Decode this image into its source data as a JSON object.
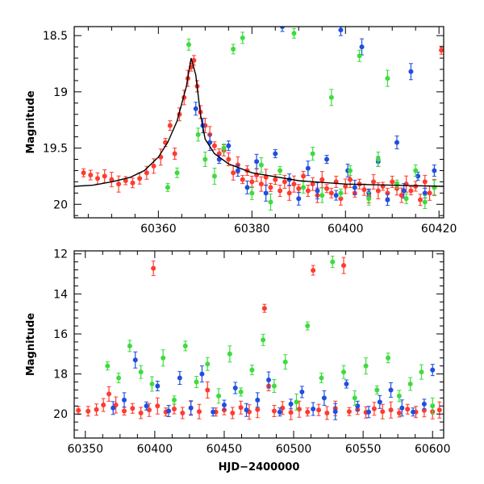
{
  "chart_data": [
    {
      "type": "scatter",
      "panel": "top",
      "xlabel": "",
      "ylabel": "Magnitude",
      "xlim": [
        60342,
        60421
      ],
      "ylim": [
        20.12,
        18.42
      ],
      "y_inverted": true,
      "xticks": [
        60360,
        60380,
        60400,
        60420
      ],
      "yticks": [
        18.5,
        19,
        19.5,
        20
      ],
      "ytick_labels": [
        "18.5",
        "19",
        "19.5",
        "20"
      ],
      "error_bars": true,
      "model_curve": {
        "color": "#000000",
        "points": [
          [
            60342,
            19.84
          ],
          [
            60346,
            19.83
          ],
          [
            60350,
            19.8
          ],
          [
            60354,
            19.76
          ],
          [
            60357,
            19.7
          ],
          [
            60360,
            19.58
          ],
          [
            60362,
            19.45
          ],
          [
            60364,
            19.26
          ],
          [
            60366,
            18.95
          ],
          [
            60367,
            18.7
          ],
          [
            60368,
            18.85
          ],
          [
            60369,
            19.2
          ],
          [
            60370,
            19.42
          ],
          [
            60372,
            19.55
          ],
          [
            60375,
            19.64
          ],
          [
            60380,
            19.72
          ],
          [
            60390,
            19.79
          ],
          [
            60400,
            19.82
          ],
          [
            60410,
            19.83
          ],
          [
            60421,
            19.84
          ]
        ]
      },
      "series": [
        {
          "color": "#ff3b2f",
          "points": [
            [
              60344,
              19.72
            ],
            [
              60345.5,
              19.74
            ],
            [
              60347,
              19.77
            ],
            [
              60348.5,
              19.75
            ],
            [
              60350,
              19.78
            ],
            [
              60351.5,
              19.82
            ],
            [
              60353,
              19.79
            ],
            [
              60354.5,
              19.81
            ],
            [
              60356,
              19.77
            ],
            [
              60357.5,
              19.72
            ],
            [
              60359,
              19.66
            ],
            [
              60360.5,
              19.58
            ],
            [
              60361.5,
              19.45
            ],
            [
              60362.5,
              19.3
            ],
            [
              60363.5,
              19.55
            ],
            [
              60364.5,
              19.2
            ],
            [
              60365.5,
              19.05
            ],
            [
              60366.3,
              18.88
            ],
            [
              60367,
              18.78
            ],
            [
              60367.6,
              18.72
            ],
            [
              60368.3,
              18.95
            ],
            [
              60369,
              19.18
            ],
            [
              60370,
              19.3
            ],
            [
              60371,
              19.38
            ],
            [
              60372,
              19.48
            ],
            [
              60373,
              19.55
            ],
            [
              60374,
              19.52
            ],
            [
              60375,
              19.6
            ],
            [
              60376,
              19.72
            ],
            [
              60377,
              19.65
            ],
            [
              60378,
              19.78
            ],
            [
              60379,
              19.7
            ],
            [
              60380,
              19.8
            ],
            [
              60381,
              19.74
            ],
            [
              60382,
              19.82
            ],
            [
              60383,
              19.76
            ],
            [
              60384,
              19.85
            ],
            [
              60385,
              19.78
            ],
            [
              60386,
              19.88
            ],
            [
              60387,
              19.8
            ],
            [
              60388,
              19.9
            ],
            [
              60389,
              19.82
            ],
            [
              60390,
              19.86
            ],
            [
              60391,
              19.75
            ],
            [
              60392,
              19.88
            ],
            [
              60393,
              19.82
            ],
            [
              60394,
              19.92
            ],
            [
              60395,
              19.78
            ],
            [
              60396,
              19.86
            ],
            [
              60397,
              19.9
            ],
            [
              60398,
              19.8
            ],
            [
              60399,
              19.95
            ],
            [
              60400,
              19.84
            ],
            [
              60401,
              19.78
            ],
            [
              60402,
              19.9
            ],
            [
              60403,
              19.82
            ],
            [
              60404,
              19.87
            ],
            [
              60405,
              19.93
            ],
            [
              60406,
              19.8
            ],
            [
              60407,
              19.88
            ],
            [
              60408,
              19.84
            ],
            [
              60409,
              19.9
            ],
            [
              60410,
              19.8
            ],
            [
              60411,
              19.86
            ],
            [
              60412,
              19.92
            ],
            [
              60413,
              19.82
            ],
            [
              60414,
              19.88
            ],
            [
              60415,
              19.84
            ],
            [
              60416,
              19.96
            ],
            [
              60417,
              19.8
            ],
            [
              60418,
              19.9
            ],
            [
              60419,
              19.85
            ],
            [
              60420.5,
              18.63
            ]
          ]
        },
        {
          "color": "#1f4fe0",
          "points": [
            [
              60368,
              19.15
            ],
            [
              60369.5,
              19.3
            ],
            [
              60371,
              19.45
            ],
            [
              60373,
              19.6
            ],
            [
              60375,
              19.48
            ],
            [
              60377,
              19.7
            ],
            [
              60379,
              19.85
            ],
            [
              60381,
              19.62
            ],
            [
              60383,
              19.9
            ],
            [
              60385,
              19.55
            ],
            [
              60386.5,
              18.42
            ],
            [
              60388,
              19.78
            ],
            [
              60390,
              19.95
            ],
            [
              60392,
              19.68
            ],
            [
              60394,
              19.88
            ],
            [
              60396,
              19.6
            ],
            [
              60398,
              19.92
            ],
            [
              60399,
              18.45
            ],
            [
              60400.5,
              19.7
            ],
            [
              60402,
              19.85
            ],
            [
              60403.5,
              18.6
            ],
            [
              60405,
              19.9
            ],
            [
              60407,
              19.62
            ],
            [
              60409,
              19.96
            ],
            [
              60411,
              19.45
            ],
            [
              60412.5,
              19.88
            ],
            [
              60414,
              18.82
            ],
            [
              60415.5,
              19.75
            ],
            [
              60417,
              19.9
            ],
            [
              60419,
              19.7
            ]
          ]
        },
        {
          "color": "#3ddc3d",
          "points": [
            [
              60362,
              19.85
            ],
            [
              60364,
              19.72
            ],
            [
              60366.5,
              18.58
            ],
            [
              60368.5,
              19.38
            ],
            [
              60370,
              19.6
            ],
            [
              60372,
              19.75
            ],
            [
              60374,
              19.5
            ],
            [
              60376,
              18.62
            ],
            [
              60378,
              18.52
            ],
            [
              60380,
              19.9
            ],
            [
              60382,
              19.65
            ],
            [
              60384,
              19.98
            ],
            [
              60386,
              19.7
            ],
            [
              60389,
              18.48
            ],
            [
              60391,
              19.85
            ],
            [
              60393,
              19.55
            ],
            [
              60395,
              19.92
            ],
            [
              60397,
              19.05
            ],
            [
              60399,
              19.9
            ],
            [
              60401,
              19.7
            ],
            [
              60403,
              18.68
            ],
            [
              60405,
              19.95
            ],
            [
              60407,
              19.6
            ],
            [
              60409,
              18.88
            ],
            [
              60411,
              19.82
            ],
            [
              60413,
              19.95
            ],
            [
              60415,
              19.7
            ],
            [
              60417,
              19.98
            ],
            [
              60419,
              19.85
            ]
          ]
        }
      ]
    },
    {
      "type": "scatter",
      "panel": "bottom",
      "xlabel": "HJD−2400000",
      "ylabel": "Magnitude",
      "xlim": [
        60342,
        60608
      ],
      "ylim": [
        21.2,
        11.85
      ],
      "y_inverted": true,
      "xticks": [
        60350,
        60400,
        60450,
        60500,
        60550,
        60600
      ],
      "yticks": [
        12,
        14,
        16,
        18,
        20
      ],
      "ytick_labels": [
        "12",
        "14",
        "16",
        "18",
        "20"
      ],
      "error_bars": true,
      "series": [
        {
          "color": "#ff3b2f",
          "points": [
            [
              60345,
              19.82
            ],
            [
              60352,
              19.86
            ],
            [
              60358,
              19.78
            ],
            [
              60363,
              19.55
            ],
            [
              60367,
              19.0
            ],
            [
              60372,
              19.55
            ],
            [
              60378,
              19.85
            ],
            [
              60384,
              19.72
            ],
            [
              60390,
              19.95
            ],
            [
              60396,
              19.8
            ],
            [
              60399,
              12.72
            ],
            [
              60402,
              19.6
            ],
            [
              60408,
              19.9
            ],
            [
              60414,
              19.75
            ],
            [
              60420,
              19.95
            ],
            [
              60426,
              19.7
            ],
            [
              60432,
              19.88
            ],
            [
              60438,
              18.8
            ],
            [
              60444,
              19.9
            ],
            [
              60450,
              19.8
            ],
            [
              60456,
              19.95
            ],
            [
              60462,
              19.68
            ],
            [
              60468,
              19.9
            ],
            [
              60474,
              19.78
            ],
            [
              60479,
              14.72
            ],
            [
              60482,
              18.6
            ],
            [
              60486,
              19.85
            ],
            [
              60492,
              19.7
            ],
            [
              60498,
              19.92
            ],
            [
              60504,
              19.76
            ],
            [
              60510,
              19.9
            ],
            [
              60514,
              12.82
            ],
            [
              60518,
              19.8
            ],
            [
              60524,
              19.95
            ],
            [
              60530,
              19.72
            ],
            [
              60536,
              12.58
            ],
            [
              60540,
              19.88
            ],
            [
              60546,
              19.78
            ],
            [
              60552,
              19.92
            ],
            [
              60558,
              19.74
            ],
            [
              60564,
              19.88
            ],
            [
              60570,
              19.8
            ],
            [
              60576,
              19.95
            ],
            [
              60582,
              19.76
            ],
            [
              60588,
              19.9
            ],
            [
              60594,
              19.82
            ],
            [
              60600,
              19.88
            ],
            [
              60605,
              19.8
            ]
          ]
        },
        {
          "color": "#1f4fe0",
          "points": [
            [
              60370,
              19.7
            ],
            [
              60378,
              19.3
            ],
            [
              60386,
              17.3
            ],
            [
              60394,
              19.6
            ],
            [
              60402,
              18.6
            ],
            [
              60410,
              19.85
            ],
            [
              60418,
              18.2
            ],
            [
              60426,
              19.7
            ],
            [
              60434,
              18.0
            ],
            [
              60442,
              19.9
            ],
            [
              60450,
              19.55
            ],
            [
              60458,
              18.7
            ],
            [
              60466,
              19.8
            ],
            [
              60474,
              19.3
            ],
            [
              60482,
              18.3
            ],
            [
              60490,
              19.9
            ],
            [
              60498,
              19.5
            ],
            [
              60506,
              18.9
            ],
            [
              60514,
              19.75
            ],
            [
              60522,
              19.2
            ],
            [
              60530,
              19.88
            ],
            [
              60538,
              18.5
            ],
            [
              60546,
              19.6
            ],
            [
              60554,
              19.9
            ],
            [
              60562,
              19.4
            ],
            [
              60570,
              18.8
            ],
            [
              60578,
              19.7
            ],
            [
              60586,
              19.9
            ],
            [
              60594,
              19.5
            ],
            [
              60600,
              17.8
            ]
          ]
        },
        {
          "color": "#3ddc3d",
          "points": [
            [
              60366,
              17.6
            ],
            [
              60374,
              18.2
            ],
            [
              60382,
              16.6
            ],
            [
              60390,
              17.9
            ],
            [
              60398,
              18.5
            ],
            [
              60406,
              17.2
            ],
            [
              60414,
              19.3
            ],
            [
              60422,
              16.6
            ],
            [
              60430,
              18.4
            ],
            [
              60438,
              17.5
            ],
            [
              60446,
              19.1
            ],
            [
              60454,
              17.0
            ],
            [
              60462,
              18.9
            ],
            [
              60470,
              17.8
            ],
            [
              60478,
              16.3
            ],
            [
              60486,
              18.6
            ],
            [
              60494,
              17.4
            ],
            [
              60502,
              19.4
            ],
            [
              60510,
              15.6
            ],
            [
              60520,
              18.2
            ],
            [
              60528,
              12.4
            ],
            [
              60536,
              17.9
            ],
            [
              60544,
              19.2
            ],
            [
              60552,
              17.6
            ],
            [
              60560,
              18.8
            ],
            [
              60568,
              17.2
            ],
            [
              60576,
              19.1
            ],
            [
              60584,
              18.5
            ],
            [
              60592,
              17.9
            ],
            [
              60600,
              19.6
            ]
          ]
        }
      ]
    }
  ]
}
